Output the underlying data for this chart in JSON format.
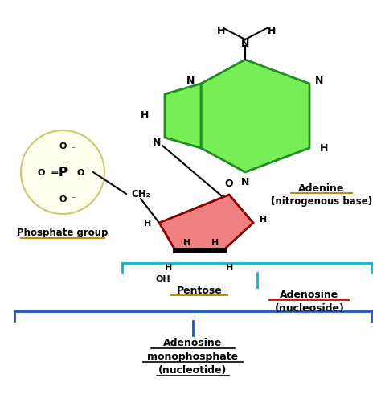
{
  "bg_color": "#ffffff",
  "adenine_color": "#77ee55",
  "adenine_border": "#228B22",
  "pentose_color": "#f08080",
  "pentose_border": "#8B0000",
  "phosphate_bg": "#fffff0",
  "phosphate_border": "#c8c870",
  "cyan_color": "#00bcd4",
  "blue_color": "#1a56c4",
  "orange_color": "#cc8800",
  "red_underline": "#cc2200",
  "label_adenine": "Adenine",
  "label_adenine2": "(nitrogenous base)",
  "label_pentose": "Pentose",
  "label_phosphate": "Phosphate group",
  "label_adenosine": "Adenosine",
  "label_adenosine2": "(nucleoside)",
  "label_amp1": "Adenosine",
  "label_amp2": "monophosphate",
  "label_amp3": "(nucleotide)"
}
